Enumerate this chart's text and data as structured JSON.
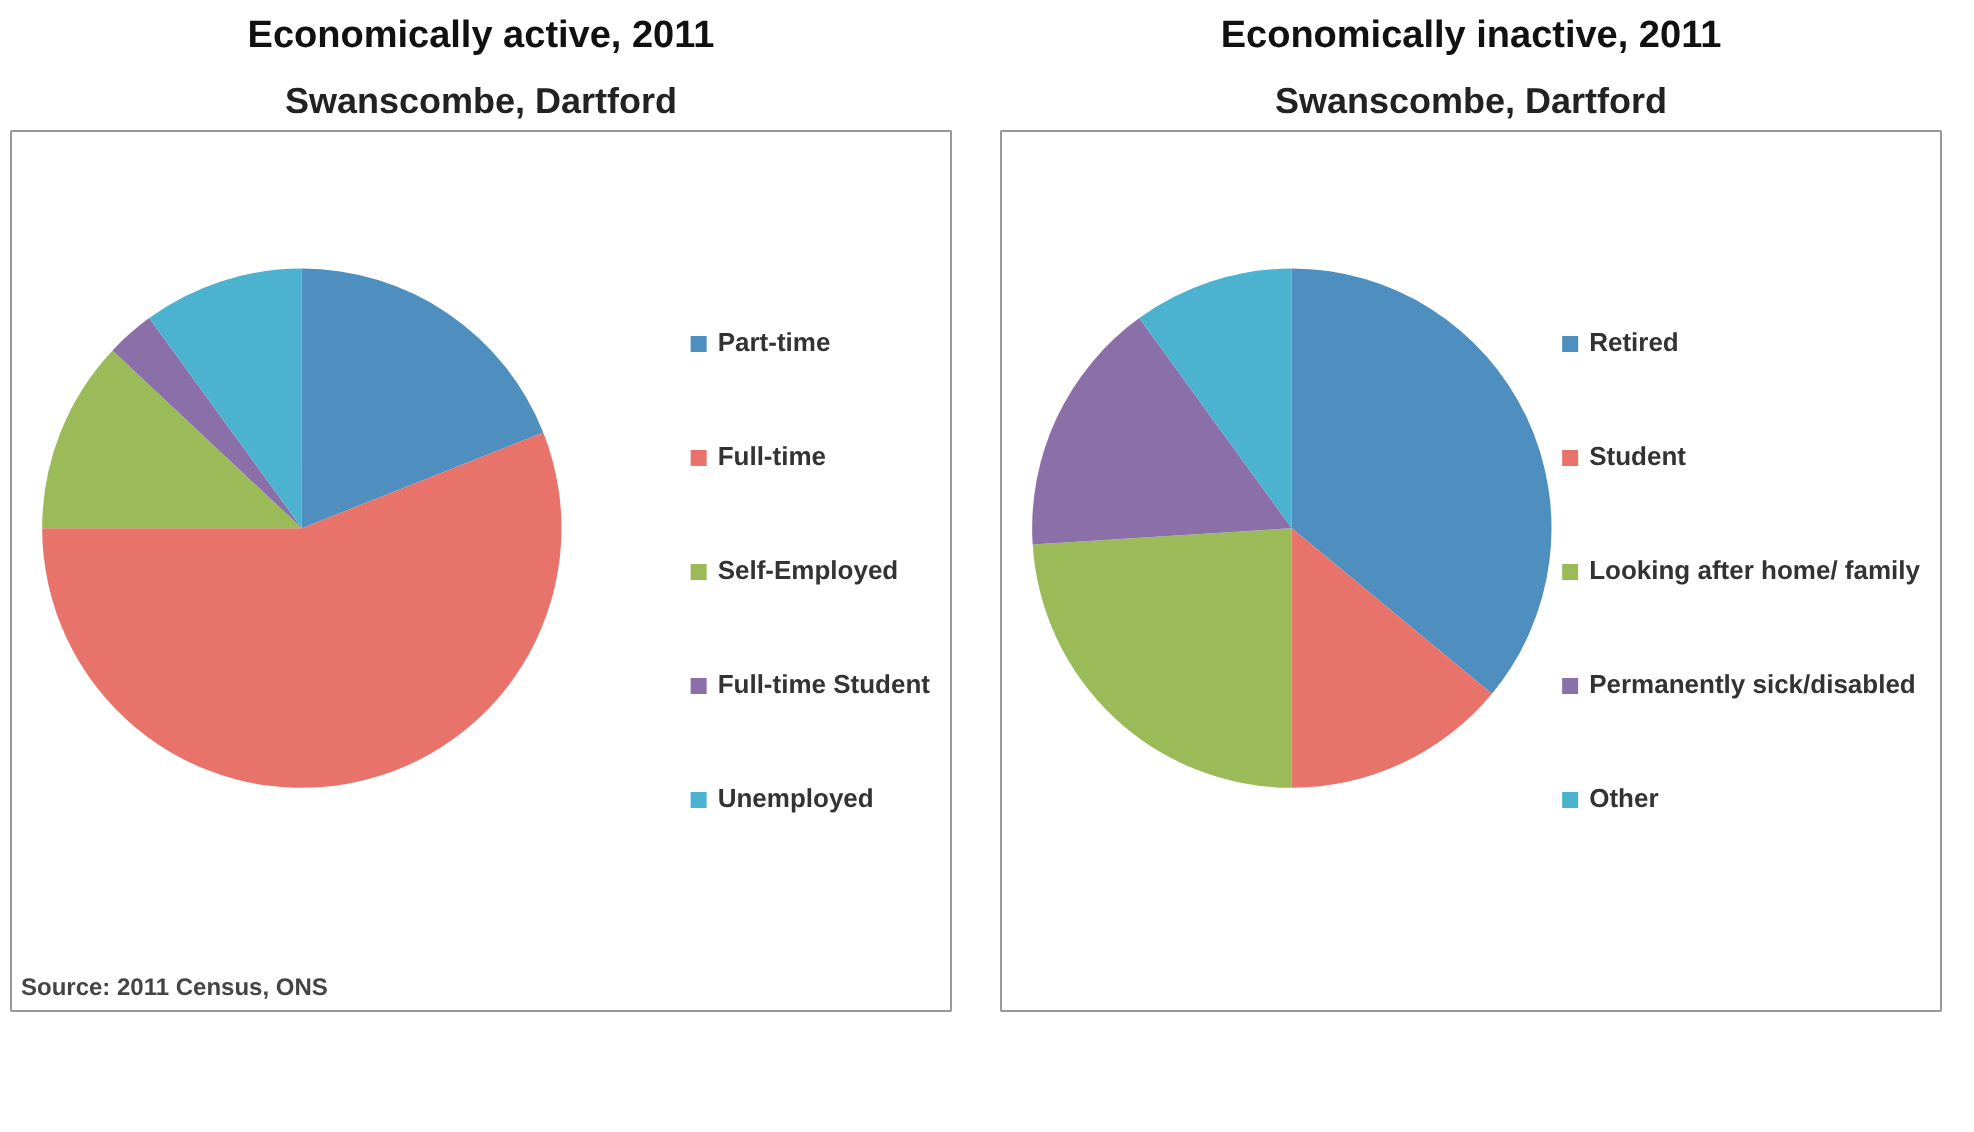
{
  "chart_data": [
    {
      "type": "pie",
      "title": "Economically active, 2011",
      "subtitle": "Swanscombe, Dartford",
      "categories": [
        "Part-time",
        "Full-time",
        "Self-Employed",
        "Full-time Student",
        "Unemployed"
      ],
      "values": [
        19,
        56,
        12,
        3,
        10
      ],
      "colors": [
        "#4f8fc0",
        "#e8736a",
        "#9bbb59",
        "#8a6fa8",
        "#4bb3cf"
      ],
      "legend": "right",
      "annotations": [
        "Source: 2011 Census, ONS"
      ]
    },
    {
      "type": "pie",
      "title": "Economically inactive, 2011",
      "subtitle": "Swanscombe, Dartford",
      "categories": [
        "Retired",
        "Student",
        "Looking after home/ family",
        "Permanently sick/disabled",
        "Other"
      ],
      "values": [
        36,
        14,
        24,
        16,
        10
      ],
      "colors": [
        "#4f8fc0",
        "#e8736a",
        "#9bbb59",
        "#8a6fa8",
        "#4bb3cf"
      ],
      "legend": "right"
    }
  ]
}
